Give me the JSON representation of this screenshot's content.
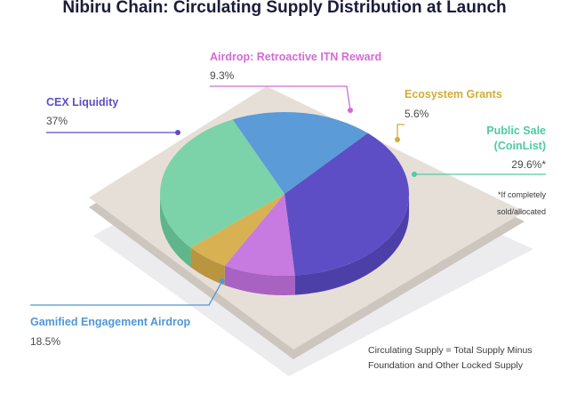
{
  "chart_data": {
    "type": "pie",
    "title": "Nibiru Chain:  Circulating Supply Distribution at Launch",
    "slices": [
      {
        "name": "CEX Liquidity",
        "value": 37,
        "value_label": "37%",
        "color": "#5e4ec6",
        "side_color": "#4d3fa8",
        "line_color": "#5e4ec6"
      },
      {
        "name": "Airdrop: Retroactive ITN Reward",
        "value": 9.3,
        "value_label": "9.3%",
        "color": "#c77ae0",
        "side_color": "#a862c2",
        "line_color": "#d36ad6"
      },
      {
        "name": "Ecosystem Grants",
        "value": 5.6,
        "value_label": "5.6%",
        "color": "#d8b252",
        "side_color": "#b99540",
        "line_color": "#d3ac37"
      },
      {
        "name_lines": [
          "Public Sale",
          "(CoinList)"
        ],
        "name": "Public Sale (CoinList)",
        "value": 29.6,
        "value_label": "29.6%*",
        "color": "#7dd3a9",
        "side_color": "#5fb58c",
        "line_color": "#4fcaa3"
      },
      {
        "name": "Gamified Engagement Airdrop",
        "value": 18.5,
        "value_label": "18.5%",
        "color": "#5a9bd8",
        "side_color": "#4a82b9",
        "line_color": "#4f97d8"
      }
    ],
    "annotation_lines": [
      "*If completely",
      "sold/allocated"
    ],
    "footnote_lines": [
      "Circulating Supply = Total Supply Minus",
      "Foundation and Other Locked Supply"
    ],
    "colors": {
      "platform_top": "#e6dfd8",
      "platform_side": "#cdc6bf",
      "platform_shadow": "#ecebee",
      "title": "#1b1b3a"
    }
  }
}
